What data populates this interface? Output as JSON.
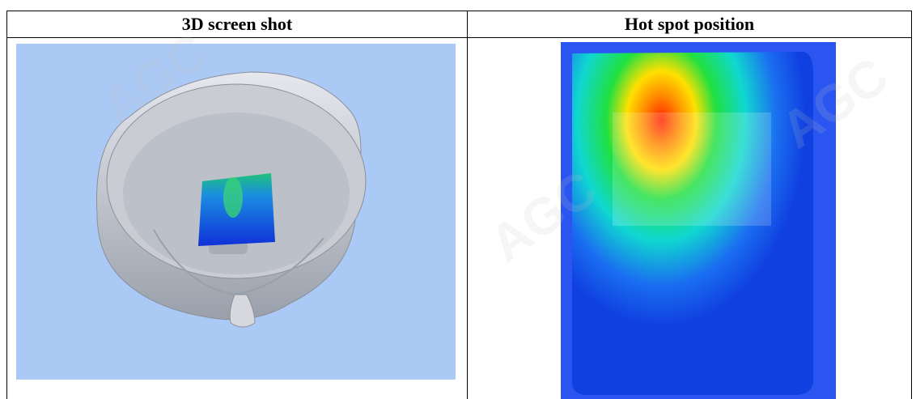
{
  "table": {
    "header": [
      "3D screen shot",
      "Hot spot position"
    ]
  },
  "watermark": "AGC"
}
